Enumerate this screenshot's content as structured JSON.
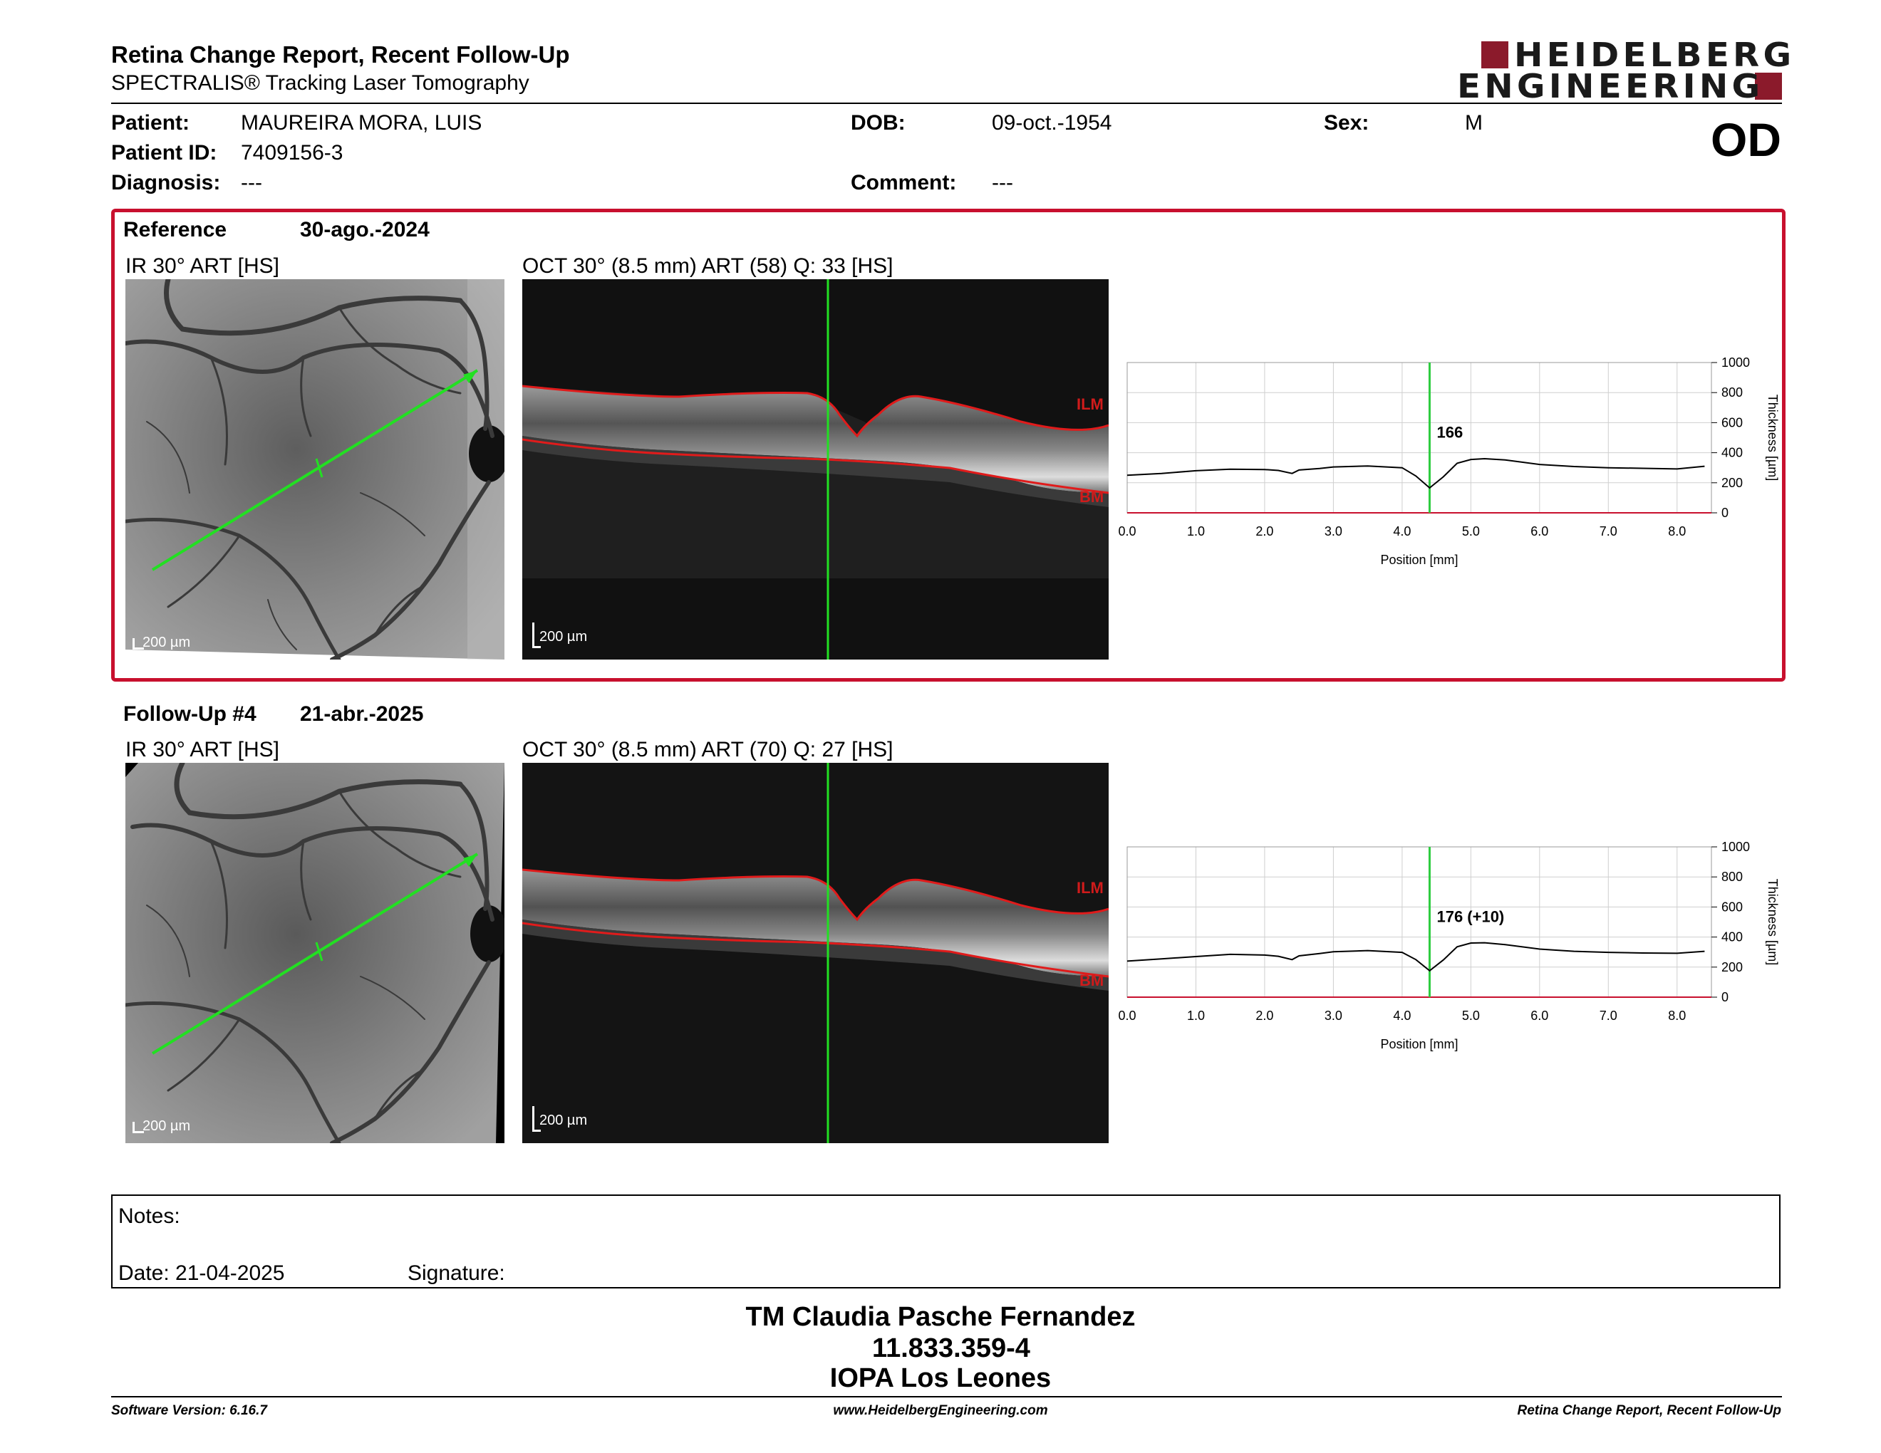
{
  "header": {
    "title": "Retina Change Report, Recent Follow-Up",
    "subtitle": "SPECTRALIS® Tracking Laser Tomography",
    "logo_line1": "HEIDELBERG",
    "logo_line2": "ENGINEERING",
    "brand_color": "#8b1a2b"
  },
  "patient": {
    "patient_label": "Patient:",
    "patient_value": "MAUREIRA MORA, LUIS",
    "id_label": "Patient ID:",
    "id_value": "7409156-3",
    "diagnosis_label": "Diagnosis:",
    "diagnosis_value": "---",
    "dob_label": "DOB:",
    "dob_value": "09-oct.-1954",
    "comment_label": "Comment:",
    "comment_value": "---",
    "sex_label": "Sex:",
    "sex_value": "M",
    "eye": "OD"
  },
  "reference": {
    "label": "Reference",
    "date": "30-ago.-2024",
    "ir_title": "IR 30° ART [HS]",
    "oct_title": "OCT 30° (8.5 mm) ART (58) Q: 33 [HS]",
    "ir_scale": "200 µm",
    "oct_scale": "200 µm",
    "ilm": "ILM",
    "bm": "BM",
    "border_color": "#c8102e"
  },
  "followup": {
    "label": "Follow-Up #4",
    "date": "21-abr.-2025",
    "ir_title": "IR 30° ART [HS]",
    "oct_title": "OCT 30° (8.5 mm) ART (70) Q: 27 [HS]",
    "ir_scale": "200 µm",
    "oct_scale": "200 µm",
    "ilm": "ILM",
    "bm": "BM"
  },
  "chart_data": [
    {
      "type": "line",
      "title": "",
      "xlabel": "Position [mm]",
      "ylabel": "Thickness [µm]",
      "xlim": [
        0,
        8.5
      ],
      "ylim": [
        0,
        1000
      ],
      "xticks": [
        "0.0",
        "1.0",
        "2.0",
        "3.0",
        "4.0",
        "5.0",
        "6.0",
        "7.0",
        "8.0"
      ],
      "yticks": [
        "0",
        "200",
        "400",
        "600",
        "800",
        "1000"
      ],
      "marker_x": 4.4,
      "marker_label": "166",
      "grid": true,
      "marker_color": "#2ecc40",
      "series": [
        {
          "x": [
            0,
            0.5,
            1.0,
            1.5,
            2.0,
            2.2,
            2.4,
            2.5,
            2.8,
            3.0,
            3.5,
            4.0,
            4.2,
            4.4,
            4.6,
            4.8,
            5.0,
            5.2,
            5.5,
            6.0,
            6.5,
            7.0,
            7.5,
            8.0,
            8.4
          ],
          "y": [
            250,
            262,
            280,
            290,
            288,
            282,
            262,
            285,
            295,
            305,
            312,
            300,
            245,
            166,
            240,
            330,
            355,
            360,
            352,
            322,
            308,
            300,
            296,
            292,
            310
          ]
        }
      ]
    },
    {
      "type": "line",
      "title": "",
      "xlabel": "Position [mm]",
      "ylabel": "Thickness [µm]",
      "xlim": [
        0,
        8.5
      ],
      "ylim": [
        0,
        1000
      ],
      "xticks": [
        "0.0",
        "1.0",
        "2.0",
        "3.0",
        "4.0",
        "5.0",
        "6.0",
        "7.0",
        "8.0"
      ],
      "yticks": [
        "0",
        "200",
        "400",
        "600",
        "800",
        "1000"
      ],
      "marker_x": 4.4,
      "marker_label": "176 (+10)",
      "grid": true,
      "marker_color": "#2ecc40",
      "series": [
        {
          "x": [
            0,
            0.5,
            1.0,
            1.5,
            2.0,
            2.2,
            2.4,
            2.5,
            2.8,
            3.0,
            3.5,
            4.0,
            4.2,
            4.4,
            4.6,
            4.8,
            5.0,
            5.2,
            5.5,
            6.0,
            6.5,
            7.0,
            7.5,
            8.0,
            8.4
          ],
          "y": [
            240,
            255,
            270,
            285,
            280,
            272,
            250,
            275,
            290,
            302,
            310,
            298,
            250,
            176,
            248,
            335,
            360,
            362,
            350,
            320,
            305,
            298,
            294,
            292,
            305
          ]
        }
      ]
    }
  ],
  "notes": {
    "notes_label": "Notes:",
    "date_label": "Date: 21-04-2025",
    "signature_label": "Signature:"
  },
  "signature": {
    "name": "TM Claudia Pasche Fernandez",
    "id": "11.833.359-4",
    "place": "IOPA Los Leones"
  },
  "footer": {
    "software": "Software Version: 6.16.7",
    "website": "www.HeidelbergEngineering.com",
    "report": "Retina Change Report, Recent Follow-Up"
  }
}
